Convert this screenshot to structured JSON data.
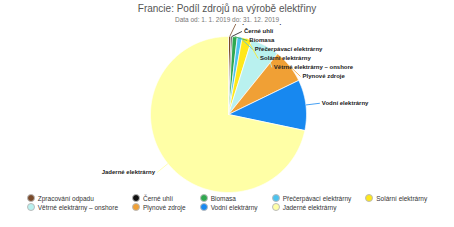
{
  "chart_data": {
    "type": "pie",
    "title": "Francie: Podíl zdrojů na výrobě elektřiny",
    "subtitle": "Data od: 1. 1. 2019 do: 31. 12. 2019",
    "categories": [
      "Zpracování odpadu",
      "Černé uhlí",
      "Biomasa",
      "Přečerpávací elektrárny",
      "Solární elektrárny",
      "Větrné elektrárny – onshore",
      "Plynové zdroje",
      "Vodní elektrárny",
      "Jaderné elektrárny"
    ],
    "values": [
      0.5,
      0.3,
      1,
      1,
      2,
      6,
      7,
      10.5,
      71.7
    ],
    "colors": [
      "#7a4a2a",
      "#111111",
      "#2fa84f",
      "#4cc3ee",
      "#ffe81a",
      "#b9f1ef",
      "#f0a035",
      "#1788f0",
      "#ffffa6"
    ],
    "legend": "bottom"
  }
}
